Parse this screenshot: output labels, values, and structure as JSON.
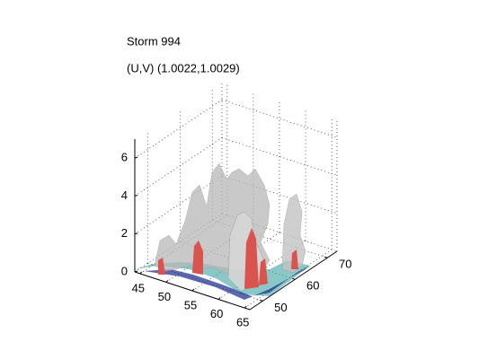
{
  "chart_data": {
    "type": "surface3d",
    "title": "Storm 994",
    "subtitle": "(U,V) (1.0022,1.0029)",
    "xlim": [
      44,
      66
    ],
    "xticks": [
      45,
      50,
      55,
      60,
      65
    ],
    "ylim": [
      46,
      73
    ],
    "yticks": [
      50,
      60,
      70
    ],
    "zlim": [
      0,
      7
    ],
    "zticks": [
      0,
      2,
      4,
      6
    ],
    "grid": true
  }
}
